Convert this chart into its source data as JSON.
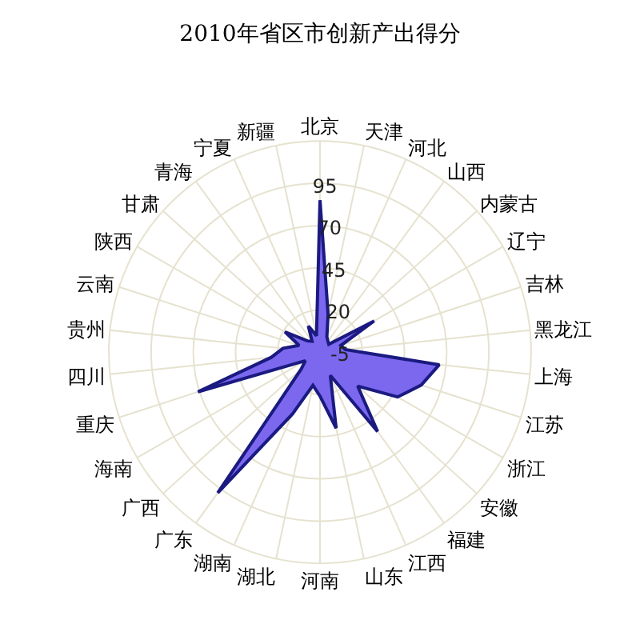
{
  "chart_data": {
    "type": "radar",
    "title": "2010年省区市创新产出得分",
    "categories": [
      "北京",
      "天津",
      "河北",
      "山西",
      "内蒙古",
      "辽宁",
      "吉林",
      "黑龙江",
      "上海",
      "江苏",
      "浙江",
      "安徽",
      "福建",
      "江西",
      "山东",
      "河南",
      "湖北",
      "湖南",
      "广东",
      "广西",
      "海南",
      "重庆",
      "四川",
      "贵州",
      "云南",
      "陕西",
      "甘肃",
      "青海",
      "宁夏",
      "新疆"
    ],
    "series": [
      {
        "color": "#7b68ee",
        "values": [
          85,
          18,
          5,
          3,
          2,
          32,
          8,
          10,
          66,
          58,
          48,
          25,
          53,
          10,
          41,
          21,
          15,
          35,
          98,
          10,
          5,
          71,
          24,
          17,
          8,
          19,
          5,
          3,
          12,
          5
        ]
      }
    ],
    "ylim": [
      -5,
      120
    ],
    "yticks": [
      -5,
      20,
      45,
      70,
      95
    ],
    "grid": true,
    "marker": "none"
  }
}
